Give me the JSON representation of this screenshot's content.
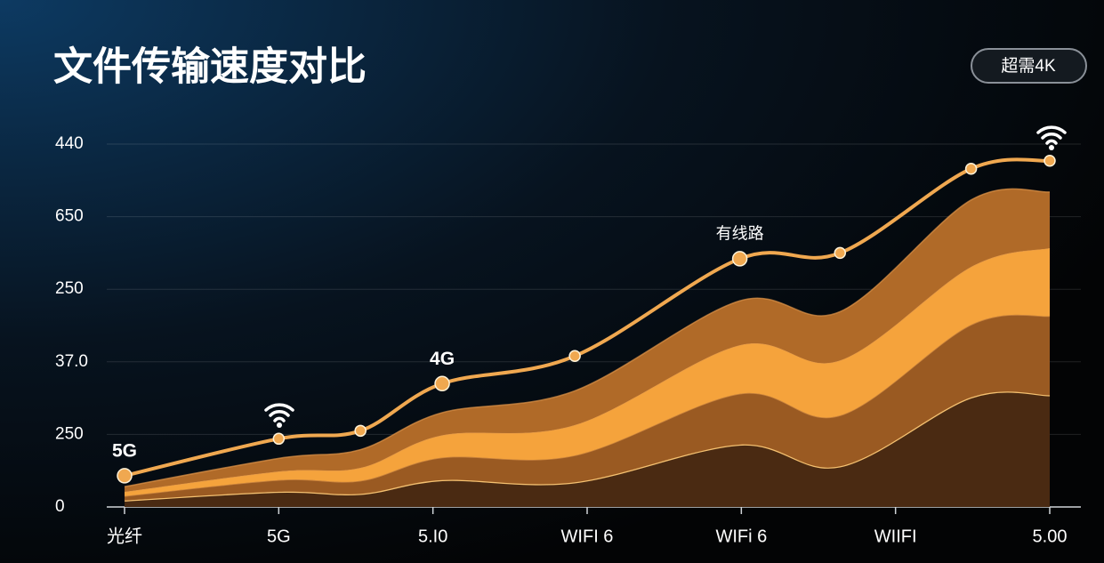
{
  "chart_data": {
    "type": "stacked-area-line",
    "title": "文件传输速度对比",
    "badge": "超需4K",
    "xlim": [
      0,
      6
    ],
    "xticks": [
      {
        "value": 0,
        "label": "光纤"
      },
      {
        "value": 1,
        "label": "5G"
      },
      {
        "value": 2,
        "label": "5.I0"
      },
      {
        "value": 3,
        "label": "WIFI 6"
      },
      {
        "value": 4,
        "label": "WIFi 6"
      },
      {
        "value": 5,
        "label": "WIIFI"
      },
      {
        "value": 6,
        "label": "5.00"
      }
    ],
    "ylim": [
      0,
      500
    ],
    "yticks": [
      0,
      {
        "value": 100,
        "label": "250"
      },
      {
        "value": 200,
        "label": "37.0"
      },
      {
        "value": 300,
        "label": "250"
      },
      {
        "value": 400,
        "label": "650"
      },
      {
        "value": 500,
        "label": "440"
      }
    ],
    "grid": true,
    "x": [
      0,
      1,
      1.53,
      2.06,
      2.92,
      3.99,
      4.64,
      5.49,
      6.0
    ],
    "series": [
      {
        "color": "#4a2a12",
        "values": [
          9,
          21,
          18,
          37,
          34,
          86,
          56,
          151,
          154
        ]
      },
      {
        "color": "#9a5a22",
        "values": [
          6,
          16,
          18,
          31,
          37,
          70,
          70,
          100,
          109
        ]
      },
      {
        "color": "#f5a33c",
        "values": [
          6,
          12,
          18,
          31,
          42,
          67,
          76,
          80,
          94
        ]
      },
      {
        "color": "#b06a28",
        "values": [
          7,
          18,
          25,
          31,
          47,
          61,
          67,
          92,
          77
        ]
      }
    ],
    "line": {
      "color": "#f0a850",
      "values": [
        43,
        94,
        105,
        170,
        208,
        342,
        350,
        466,
        477
      ],
      "value_labels": [
        "5G",
        null,
        null,
        "4G",
        null,
        "有线路",
        null,
        null,
        null
      ]
    }
  }
}
